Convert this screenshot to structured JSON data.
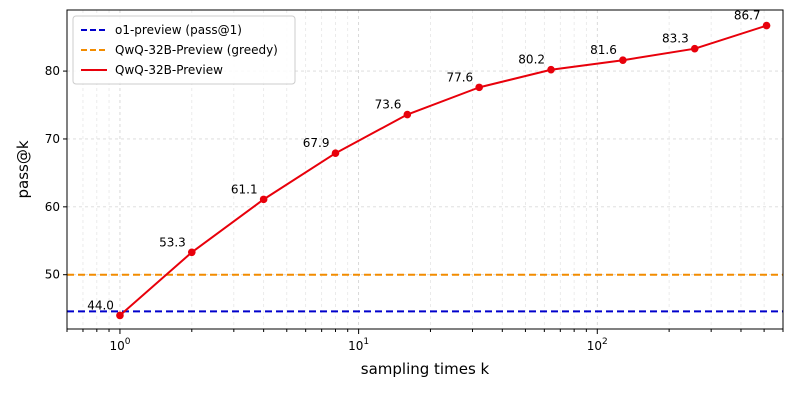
{
  "chart_data": {
    "type": "line",
    "xlabel": "sampling times k",
    "ylabel": "pass@k",
    "xscale": "log",
    "xlim": [
      0.6,
      600
    ],
    "ylim": [
      42,
      89
    ],
    "grid": true,
    "legend_position": "top-left",
    "y_ticks": [
      50,
      60,
      70,
      80
    ],
    "x_ticks": [
      {
        "base": "10",
        "exp": "0"
      },
      {
        "base": "10",
        "exp": "1"
      },
      {
        "base": "10",
        "exp": "2"
      }
    ],
    "x_tick_values": [
      1,
      10,
      100
    ],
    "series": [
      {
        "name": "o1-preview (pass@1)",
        "kind": "hline",
        "value": 44.6,
        "color": "#0000cc",
        "style": "dashed"
      },
      {
        "name": "QwQ-32B-Preview (greedy)",
        "kind": "hline",
        "value": 50.0,
        "color": "#f28c00",
        "style": "dashed"
      },
      {
        "name": "QwQ-32B-Preview",
        "kind": "line",
        "x": [
          1,
          2,
          4,
          8,
          16,
          32,
          64,
          128,
          256,
          512
        ],
        "y": [
          44.0,
          53.3,
          61.1,
          67.9,
          73.6,
          77.6,
          80.2,
          81.6,
          83.3,
          86.7
        ],
        "labels": [
          "44.0",
          "53.3",
          "61.1",
          "67.9",
          "73.6",
          "77.6",
          "80.2",
          "81.6",
          "83.3",
          "86.7"
        ],
        "color": "#e8000b",
        "style": "solid"
      }
    ]
  }
}
